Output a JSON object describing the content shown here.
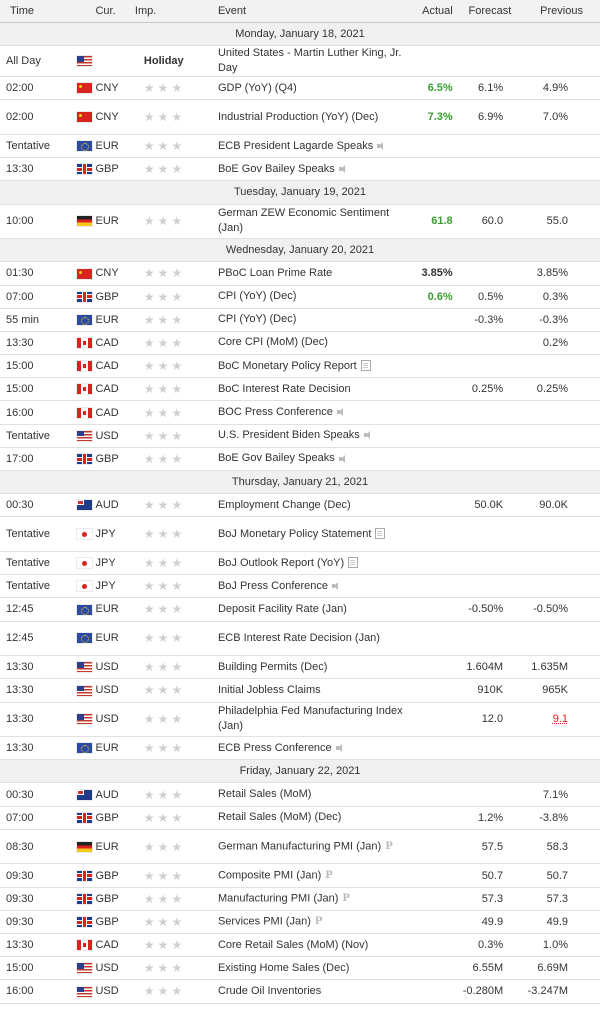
{
  "header": {
    "time": "Time",
    "cur": "Cur.",
    "imp": "Imp.",
    "event": "Event",
    "actual": "Actual",
    "forecast": "Forecast",
    "previous": "Previous"
  },
  "colors": {
    "green": "#3a9e2f",
    "red": "#dd2222",
    "star": "#cfcfcf"
  },
  "days": [
    {
      "label": "Monday, January 18, 2021",
      "events": [
        {
          "time": "All Day",
          "cur": "",
          "flag": "US",
          "holiday": "Holiday",
          "event": "United States - Martin Luther King, Jr. Day",
          "actual": "",
          "forecast": "",
          "previous": "",
          "h": 1
        },
        {
          "time": "02:00",
          "cur": "CNY",
          "flag": "CN",
          "event": "GDP (YoY) (Q4)",
          "actual": "6.5%",
          "actualColor": "green",
          "forecast": "6.1%",
          "previous": "4.9%",
          "h": 1
        },
        {
          "time": "02:00",
          "cur": "CNY",
          "flag": "CN",
          "event": "Industrial Production (YoY) (Dec)",
          "actual": "7.3%",
          "actualColor": "green",
          "forecast": "6.9%",
          "previous": "7.0%",
          "h": 2
        },
        {
          "time": "Tentative",
          "cur": "EUR",
          "flag": "EU",
          "event": "ECB President Lagarde Speaks",
          "icon": "speaker",
          "actual": "",
          "forecast": "",
          "previous": "",
          "h": 1
        },
        {
          "time": "13:30",
          "cur": "GBP",
          "flag": "GB",
          "event": "BoE Gov Bailey Speaks",
          "icon": "speaker",
          "actual": "",
          "forecast": "",
          "previous": "",
          "h": 1
        }
      ]
    },
    {
      "label": "Tuesday, January 19, 2021",
      "events": [
        {
          "time": "10:00",
          "cur": "EUR",
          "flag": "DE",
          "event": "German ZEW Economic Sentiment (Jan)",
          "actual": "61.8",
          "actualColor": "green",
          "forecast": "60.0",
          "previous": "55.0",
          "h": 2
        }
      ]
    },
    {
      "label": "Wednesday, January 20, 2021",
      "events": [
        {
          "time": "01:30",
          "cur": "CNY",
          "flag": "CN",
          "event": "PBoC Loan Prime Rate",
          "actual": "3.85%",
          "forecast": "",
          "previous": "3.85%",
          "h": 1
        },
        {
          "time": "07:00",
          "cur": "GBP",
          "flag": "GB",
          "event": "CPI (YoY) (Dec)",
          "actual": "0.6%",
          "actualColor": "green",
          "forecast": "0.5%",
          "previous": "0.3%",
          "h": 1
        },
        {
          "time": "55 min",
          "cur": "EUR",
          "flag": "EU",
          "event": "CPI (YoY) (Dec)",
          "actual": "",
          "forecast": "-0.3%",
          "previous": "-0.3%",
          "h": 1
        },
        {
          "time": "13:30",
          "cur": "CAD",
          "flag": "CA",
          "event": "Core CPI (MoM) (Dec)",
          "actual": "",
          "forecast": "",
          "previous": "0.2%",
          "h": 1
        },
        {
          "time": "15:00",
          "cur": "CAD",
          "flag": "CA",
          "event": "BoC Monetary Policy Report",
          "icon": "doc",
          "actual": "",
          "forecast": "",
          "previous": "",
          "h": 1
        },
        {
          "time": "15:00",
          "cur": "CAD",
          "flag": "CA",
          "event": "BoC Interest Rate Decision",
          "actual": "",
          "forecast": "0.25%",
          "previous": "0.25%",
          "h": 1
        },
        {
          "time": "16:00",
          "cur": "CAD",
          "flag": "CA",
          "event": "BOC Press Conference",
          "icon": "speaker",
          "actual": "",
          "forecast": "",
          "previous": "",
          "h": 1
        },
        {
          "time": "Tentative",
          "cur": "USD",
          "flag": "US",
          "event": "U.S. President Biden Speaks",
          "icon": "speaker",
          "actual": "",
          "forecast": "",
          "previous": "",
          "h": 1
        },
        {
          "time": "17:00",
          "cur": "GBP",
          "flag": "GB",
          "event": "BoE Gov Bailey Speaks",
          "icon": "speaker",
          "actual": "",
          "forecast": "",
          "previous": "",
          "h": 1
        }
      ]
    },
    {
      "label": "Thursday, January 21, 2021",
      "events": [
        {
          "time": "00:30",
          "cur": "AUD",
          "flag": "AU",
          "event": "Employment Change (Dec)",
          "actual": "",
          "forecast": "50.0K",
          "previous": "90.0K",
          "h": 1
        },
        {
          "time": "Tentative",
          "cur": "JPY",
          "flag": "JP",
          "event": "BoJ Monetary Policy Statement",
          "icon": "doc",
          "actual": "",
          "forecast": "",
          "previous": "",
          "h": 2
        },
        {
          "time": "Tentative",
          "cur": "JPY",
          "flag": "JP",
          "event": "BoJ Outlook Report (YoY)",
          "icon": "doc",
          "actual": "",
          "forecast": "",
          "previous": "",
          "h": 1
        },
        {
          "time": "Tentative",
          "cur": "JPY",
          "flag": "JP",
          "event": "BoJ Press Conference",
          "icon": "speaker",
          "actual": "",
          "forecast": "",
          "previous": "",
          "h": 1
        },
        {
          "time": "12:45",
          "cur": "EUR",
          "flag": "EU",
          "event": "Deposit Facility Rate (Jan)",
          "actual": "",
          "forecast": "-0.50%",
          "previous": "-0.50%",
          "h": 1
        },
        {
          "time": "12:45",
          "cur": "EUR",
          "flag": "EU",
          "event": "ECB Interest Rate Decision (Jan)",
          "actual": "",
          "forecast": "",
          "previous": "",
          "h": 2
        },
        {
          "time": "13:30",
          "cur": "USD",
          "flag": "US",
          "event": "Building Permits (Dec)",
          "actual": "",
          "forecast": "1.604M",
          "previous": "1.635M",
          "h": 1
        },
        {
          "time": "13:30",
          "cur": "USD",
          "flag": "US",
          "event": "Initial Jobless Claims",
          "actual": "",
          "forecast": "910K",
          "previous": "965K",
          "h": 1
        },
        {
          "time": "13:30",
          "cur": "USD",
          "flag": "US",
          "event": "Philadelphia Fed Manufacturing Index (Jan)",
          "actual": "",
          "forecast": "12.0",
          "previous": "9.1",
          "previousColor": "red",
          "h": 2
        },
        {
          "time": "13:30",
          "cur": "EUR",
          "flag": "EU",
          "event": "ECB Press Conference",
          "icon": "speaker",
          "actual": "",
          "forecast": "",
          "previous": "",
          "h": 1
        }
      ]
    },
    {
      "label": "Friday, January 22, 2021",
      "events": [
        {
          "time": "00:30",
          "cur": "AUD",
          "flag": "AU",
          "event": "Retail Sales (MoM)",
          "actual": "",
          "forecast": "",
          "previous": "7.1%",
          "h": 1
        },
        {
          "time": "07:00",
          "cur": "GBP",
          "flag": "GB",
          "event": "Retail Sales (MoM) (Dec)",
          "actual": "",
          "forecast": "1.2%",
          "previous": "-3.8%",
          "h": 1
        },
        {
          "time": "08:30",
          "cur": "EUR",
          "flag": "DE",
          "event": "German Manufacturing PMI (Jan)",
          "icon": "p",
          "actual": "",
          "forecast": "57.5",
          "previous": "58.3",
          "h": 2
        },
        {
          "time": "09:30",
          "cur": "GBP",
          "flag": "GB",
          "event": "Composite PMI (Jan)",
          "icon": "p",
          "actual": "",
          "forecast": "50.7",
          "previous": "50.7",
          "h": 1
        },
        {
          "time": "09:30",
          "cur": "GBP",
          "flag": "GB",
          "event": "Manufacturing PMI (Jan)",
          "icon": "p",
          "actual": "",
          "forecast": "57.3",
          "previous": "57.3",
          "h": 1
        },
        {
          "time": "09:30",
          "cur": "GBP",
          "flag": "GB",
          "event": "Services PMI (Jan)",
          "icon": "p",
          "actual": "",
          "forecast": "49.9",
          "previous": "49.9",
          "h": 1
        },
        {
          "time": "13:30",
          "cur": "CAD",
          "flag": "CA",
          "event": "Core Retail Sales (MoM) (Nov)",
          "actual": "",
          "forecast": "0.3%",
          "previous": "1.0%",
          "h": 1
        },
        {
          "time": "15:00",
          "cur": "USD",
          "flag": "US",
          "event": "Existing Home Sales (Dec)",
          "actual": "",
          "forecast": "6.55M",
          "previous": "6.69M",
          "h": 1
        },
        {
          "time": "16:00",
          "cur": "USD",
          "flag": "US",
          "event": "Crude Oil Inventories",
          "actual": "",
          "forecast": "-0.280M",
          "previous": "-3.247M",
          "h": 1
        }
      ]
    }
  ]
}
